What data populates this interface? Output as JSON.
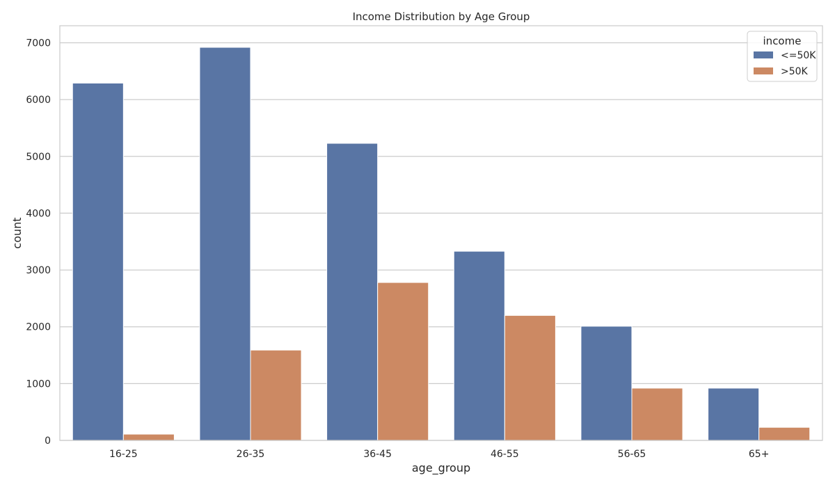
{
  "chart_data": {
    "type": "bar",
    "title": "Income Distribution by Age Group",
    "xlabel": "age_group",
    "ylabel": "count",
    "categories": [
      "16-25",
      "26-35",
      "36-45",
      "46-55",
      "56-65",
      "65+"
    ],
    "series": [
      {
        "name": "<=50K",
        "color": "#5975a4",
        "values": [
          6290,
          6920,
          5230,
          3330,
          2010,
          920
        ]
      },
      {
        "name": ">50K",
        "color": "#cc8963",
        "values": [
          110,
          1590,
          2780,
          2200,
          920,
          230
        ]
      }
    ],
    "ylim": [
      0,
      7300
    ],
    "yticks": [
      0,
      1000,
      2000,
      3000,
      4000,
      5000,
      6000,
      7000
    ],
    "grid": true,
    "legend": {
      "title": "income",
      "placement": "top-right"
    }
  }
}
